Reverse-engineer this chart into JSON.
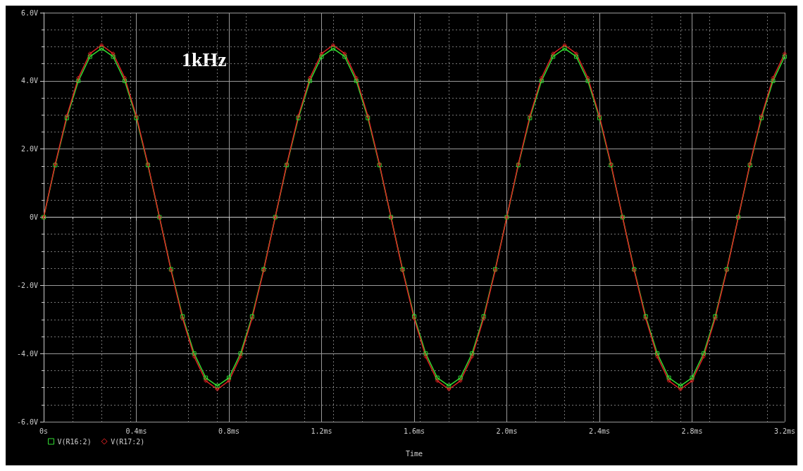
{
  "chart_data": {
    "type": "line",
    "xlabel": "Time",
    "annotations": [
      "1kHz"
    ],
    "x": [
      0,
      0.05,
      0.1,
      0.15,
      0.2,
      0.25,
      0.3,
      0.35,
      0.4,
      0.45,
      0.5,
      0.55,
      0.6,
      0.65,
      0.7,
      0.75,
      0.8,
      0.85,
      0.9,
      0.95,
      1.0,
      1.05,
      1.1,
      1.15,
      1.2,
      1.25,
      1.3,
      1.35,
      1.4,
      1.45,
      1.5,
      1.55,
      1.6,
      1.65,
      1.7,
      1.75,
      1.8,
      1.85,
      1.9,
      1.95,
      2.0,
      2.05,
      2.1,
      2.15,
      2.2,
      2.25,
      2.3,
      2.35,
      2.4,
      2.45,
      2.5,
      2.55,
      2.6,
      2.65,
      2.7,
      2.75,
      2.8,
      2.85,
      2.9,
      2.95,
      3.0,
      3.05,
      3.1,
      3.15,
      3.2
    ],
    "series": [
      {
        "name": "V(R16:2)",
        "color": "#33dd33",
        "marker": "square",
        "values": [
          0,
          1.53,
          2.91,
          4.0,
          4.71,
          4.95,
          4.71,
          4.0,
          2.91,
          1.53,
          0,
          -1.53,
          -2.91,
          -4.0,
          -4.71,
          -4.95,
          -4.71,
          -4.0,
          -2.91,
          -1.53,
          0,
          1.53,
          2.91,
          4.0,
          4.71,
          4.95,
          4.71,
          4.0,
          2.91,
          1.53,
          0,
          -1.53,
          -2.91,
          -4.0,
          -4.71,
          -4.95,
          -4.71,
          -4.0,
          -2.91,
          -1.53,
          0,
          1.53,
          2.91,
          4.0,
          4.71,
          4.95,
          4.71,
          4.0,
          2.91,
          1.53,
          0,
          -1.53,
          -2.91,
          -4.0,
          -4.71,
          -4.95,
          -4.71,
          -4.0,
          -2.91,
          -1.53,
          0,
          1.53,
          2.91,
          4.0,
          4.71
        ]
      },
      {
        "name": "V(R17:2)",
        "color": "#dd2222",
        "marker": "diamond",
        "values": [
          0,
          1.56,
          2.97,
          4.09,
          4.8,
          5.05,
          4.8,
          4.09,
          2.97,
          1.56,
          0,
          -1.56,
          -2.97,
          -4.09,
          -4.8,
          -5.05,
          -4.8,
          -4.09,
          -2.97,
          -1.56,
          0,
          1.56,
          2.97,
          4.09,
          4.8,
          5.05,
          4.8,
          4.09,
          2.97,
          1.56,
          0,
          -1.56,
          -2.97,
          -4.09,
          -4.8,
          -5.05,
          -4.8,
          -4.09,
          -2.97,
          -1.56,
          0,
          1.56,
          2.97,
          4.09,
          4.8,
          5.05,
          4.8,
          4.09,
          2.97,
          1.56,
          0,
          -1.56,
          -2.97,
          -4.09,
          -4.8,
          -5.05,
          -4.8,
          -4.09,
          -2.97,
          -1.56,
          0,
          1.56,
          2.97,
          4.09,
          4.8
        ]
      }
    ],
    "xlim": [
      0,
      3.2
    ],
    "xticks": [
      {
        "value": 0,
        "label": "0s"
      },
      {
        "value": 0.4,
        "label": "0.4ms"
      },
      {
        "value": 0.8,
        "label": "0.8ms"
      },
      {
        "value": 1.2,
        "label": "1.2ms"
      },
      {
        "value": 1.6,
        "label": "1.6ms"
      },
      {
        "value": 2.0,
        "label": "2.0ms"
      },
      {
        "value": 2.4,
        "label": "2.4ms"
      },
      {
        "value": 2.8,
        "label": "2.8ms"
      },
      {
        "value": 3.2,
        "label": "3.2ms"
      }
    ],
    "ylim": [
      -6,
      6
    ],
    "yticks": [
      {
        "value": -6,
        "label": "-6.0V"
      },
      {
        "value": -4,
        "label": "-4.0V"
      },
      {
        "value": -2,
        "label": "-2.0V"
      },
      {
        "value": 0,
        "label": "0V"
      },
      {
        "value": 2,
        "label": "2.0V"
      },
      {
        "value": 4,
        "label": "4.0V"
      },
      {
        "value": 6,
        "label": "6.0V"
      }
    ],
    "grid": true,
    "legend": "bottom left",
    "line_style": "solid"
  }
}
